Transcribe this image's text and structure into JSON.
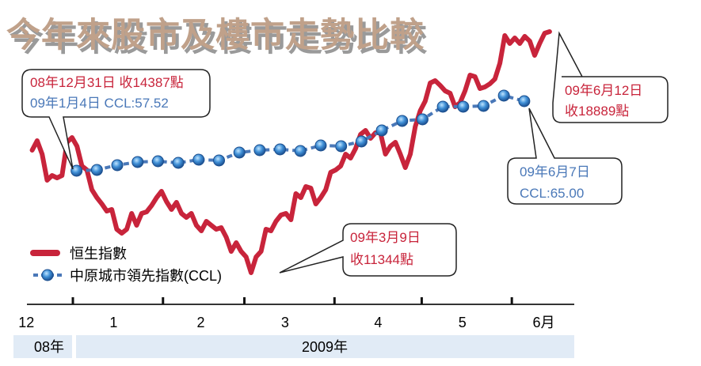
{
  "title": "今年來股市及樓市走勢比較",
  "colors": {
    "hsi": "#c8243b",
    "ccl": "#4a78b8",
    "ccl_dot": "#3f8fd6",
    "band": "#e1ebf6",
    "title": "#c0a18a"
  },
  "chart_data": {
    "type": "line",
    "title": "今年來股市及樓市走勢比較",
    "x_unit": "days since 2008-12-01",
    "xlim": [
      15,
      203
    ],
    "month_ticks": [
      {
        "label": "12",
        "day": 15
      },
      {
        "label": "1",
        "day": 45
      },
      {
        "label": "2",
        "day": 75
      },
      {
        "label": "3",
        "day": 104
      },
      {
        "label": "4",
        "day": 136
      },
      {
        "label": "5",
        "day": 165
      },
      {
        "label": "6月",
        "day": 193
      }
    ],
    "month_boundaries": [
      31,
      62,
      90,
      121,
      151,
      182
    ],
    "year_band": [
      {
        "label": "08年",
        "from": 15,
        "to": 31
      },
      {
        "label": "2009年",
        "from": 32,
        "to": 203
      }
    ],
    "series": [
      {
        "name": "恒生指數",
        "axis": "hsi",
        "x_start": 17,
        "x_end": 195,
        "values": [
          15179,
          15476,
          15055,
          14239,
          14387,
          14313,
          14387,
          15426,
          15575,
          15302,
          14684,
          14560,
          13942,
          13694,
          13496,
          13274,
          13323,
          12705,
          12581,
          12705,
          13200,
          12828,
          13200,
          13249,
          13447,
          13694,
          13892,
          13571,
          13323,
          13546,
          13200,
          13076,
          13200,
          12828,
          12655,
          12952,
          12828,
          12705,
          12754,
          12457,
          12012,
          12284,
          12012,
          11839,
          11344,
          11839,
          12012,
          12705,
          12655,
          12952,
          13150,
          13200,
          13002,
          13818,
          13694,
          14041,
          13991,
          13496,
          13694,
          13942,
          14486,
          14560,
          14684,
          15055,
          14931,
          15228,
          15674,
          15797,
          15550,
          15723,
          15723,
          15055,
          15302,
          15426,
          15055,
          14634,
          15055,
          15921,
          16416,
          16713,
          17282,
          17356,
          17207,
          17034,
          16960,
          16539,
          16663,
          17034,
          17529,
          17480,
          17108,
          17158,
          17257,
          17405,
          17900,
          18766,
          18519,
          18692,
          18519,
          18741,
          18593,
          18148,
          18519,
          18840,
          18889
        ]
      },
      {
        "name": "中原城市領先指數(CCL)",
        "axis": "ccl",
        "x_start": 35,
        "x_step": 7,
        "values": [
          57.52,
          57.61,
          58.12,
          58.46,
          58.54,
          58.37,
          58.71,
          58.63,
          59.48,
          59.73,
          59.82,
          59.65,
          60.24,
          60.16,
          60.67,
          61.86,
          62.88,
          63.05,
          64.41,
          64.41,
          64.49,
          65.6,
          65.0
        ]
      }
    ],
    "annotations": [
      {
        "id": "start",
        "line1": "08年12月31日 收14387點",
        "line2": "09年1月4日 CCL:57.52"
      },
      {
        "id": "hsi_high",
        "line1": "09年6月12日",
        "line2": "收18889點"
      },
      {
        "id": "ccl_end",
        "line1": "09年6月7日",
        "line2": "CCL:65.00"
      },
      {
        "id": "hsi_low",
        "line1": "09年3月9日",
        "line2": "收11344點"
      }
    ],
    "legend": {
      "position": "bottom-left",
      "items": [
        "恒生指數",
        "中原城市領先指數(CCL)"
      ]
    }
  }
}
